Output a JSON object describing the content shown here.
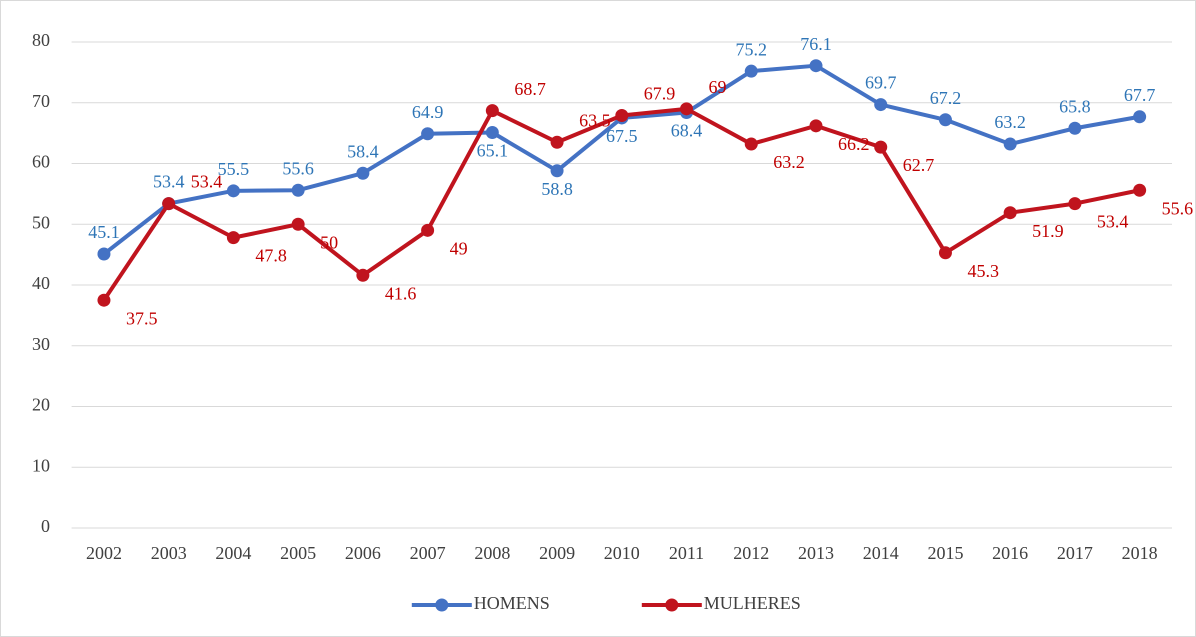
{
  "chart_data": {
    "type": "line",
    "categories": [
      "2002",
      "2003",
      "2004",
      "2005",
      "2006",
      "2007",
      "2008",
      "2009",
      "2010",
      "2011",
      "2012",
      "2013",
      "2014",
      "2015",
      "2016",
      "2017",
      "2018"
    ],
    "series": [
      {
        "name": "HOMENS",
        "color": "#4472c4",
        "label_color": "#2e75b6",
        "values": [
          45.1,
          53.4,
          55.5,
          55.6,
          58.4,
          64.9,
          65.1,
          58.8,
          67.5,
          68.4,
          75.2,
          76.1,
          69.7,
          67.2,
          63.2,
          65.8,
          67.7
        ]
      },
      {
        "name": "MULHERES",
        "color": "#c0141e",
        "label_color": "#c00000",
        "values": [
          37.5,
          53.4,
          47.8,
          50,
          41.6,
          49,
          68.7,
          63.5,
          67.9,
          69,
          63.2,
          66.2,
          62.7,
          45.3,
          51.9,
          53.4,
          55.6
        ]
      }
    ],
    "ylim": [
      0,
      80
    ],
    "yticks": [
      0,
      10,
      20,
      30,
      40,
      50,
      60,
      70,
      80
    ],
    "grid": true,
    "legend": "bottom"
  }
}
